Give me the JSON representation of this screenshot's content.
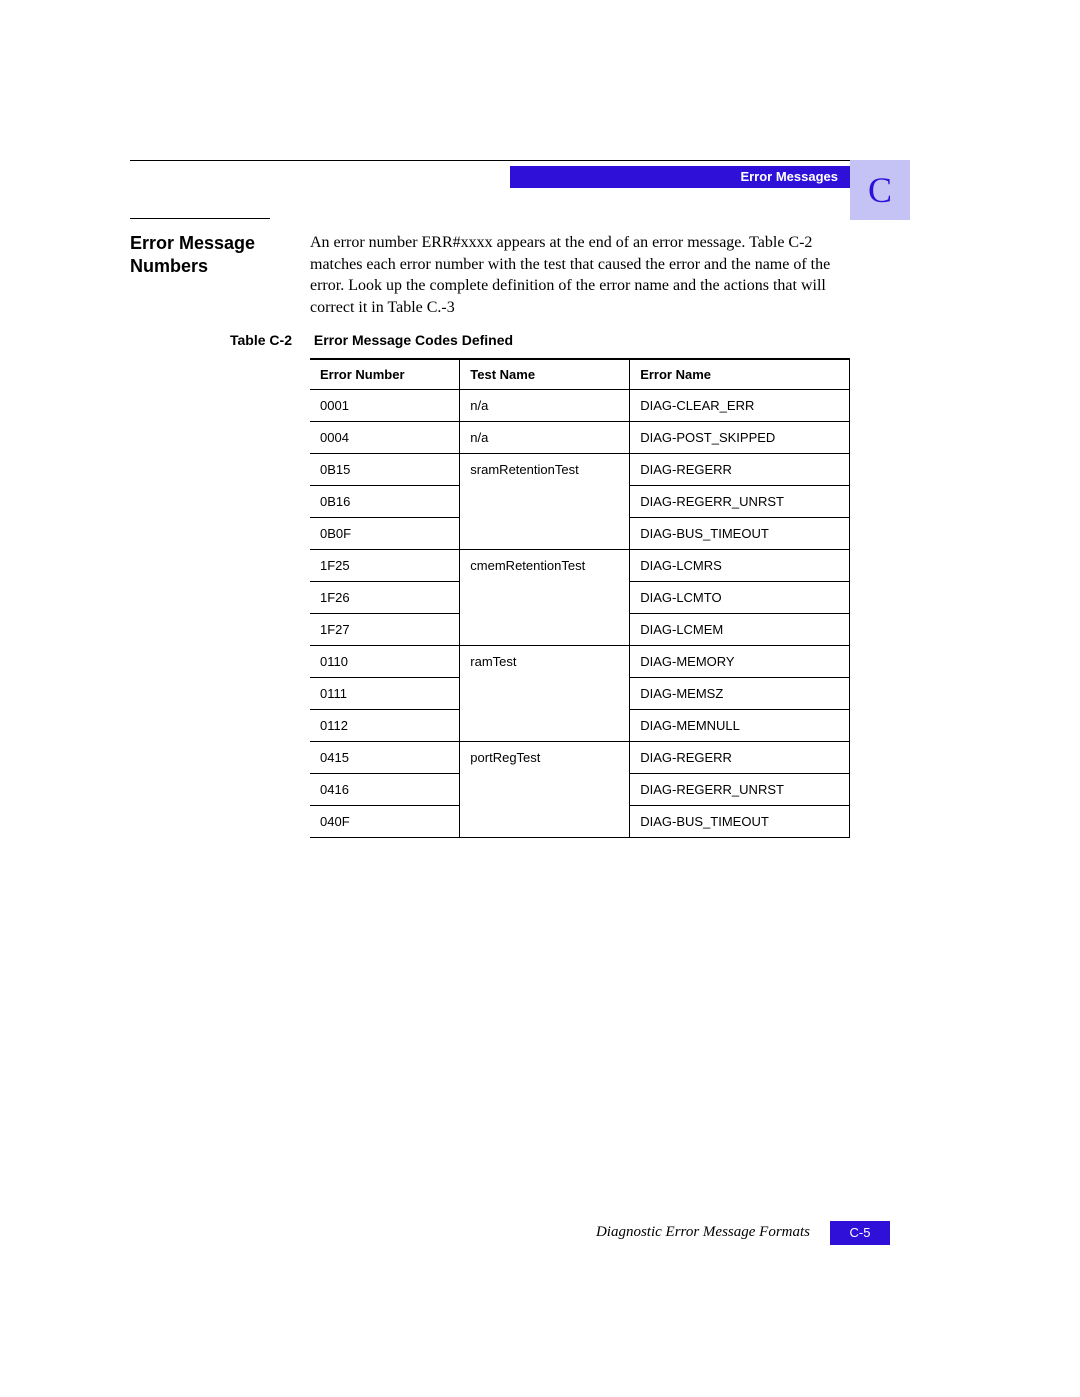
{
  "header": {
    "running_head": "Error Messages",
    "appendix_letter": "C"
  },
  "section": {
    "heading": "Error Message Numbers",
    "body": "An error number ERR#xxxx appears at the end of an error message. Table C-2 matches each error number with the test that caused the error and the name of the error. Look up the complete definition of the error name and the actions that will correct it in Table C.-3"
  },
  "table": {
    "caption_label": "Table C-2",
    "caption_title": "Error Message Codes Defined",
    "columns": [
      "Error Number",
      "Test Name",
      "Error Name"
    ],
    "groups": [
      {
        "test": "n/a",
        "rows": [
          {
            "num": "0001",
            "name": "DIAG-CLEAR_ERR"
          }
        ]
      },
      {
        "test": "n/a",
        "rows": [
          {
            "num": "0004",
            "name": "DIAG-POST_SKIPPED"
          }
        ]
      },
      {
        "test": "sramRetentionTest",
        "rows": [
          {
            "num": "0B15",
            "name": "DIAG-REGERR"
          },
          {
            "num": "0B16",
            "name": "DIAG-REGERR_UNRST"
          },
          {
            "num": "0B0F",
            "name": "DIAG-BUS_TIMEOUT"
          }
        ]
      },
      {
        "test": "cmemRetentionTest",
        "rows": [
          {
            "num": "1F25",
            "name": "DIAG-LCMRS"
          },
          {
            "num": "1F26",
            "name": "DIAG-LCMTO"
          },
          {
            "num": "1F27",
            "name": "DIAG-LCMEM"
          }
        ]
      },
      {
        "test": "ramTest",
        "rows": [
          {
            "num": "0110",
            "name": "DIAG-MEMORY"
          },
          {
            "num": "0111",
            "name": "DIAG-MEMSZ"
          },
          {
            "num": "0112",
            "name": "DIAG-MEMNULL"
          }
        ]
      },
      {
        "test": "portRegTest",
        "rows": [
          {
            "num": "0415",
            "name": "DIAG-REGERR"
          },
          {
            "num": "0416",
            "name": "DIAG-REGERR_UNRST"
          },
          {
            "num": "040F",
            "name": "DIAG-BUS_TIMEOUT"
          }
        ]
      }
    ]
  },
  "footer": {
    "text": "Diagnostic Error Message Formats",
    "page": "C-5"
  },
  "colors": {
    "accent": "#2e10d9",
    "tab_bg": "#c5c2f5"
  }
}
